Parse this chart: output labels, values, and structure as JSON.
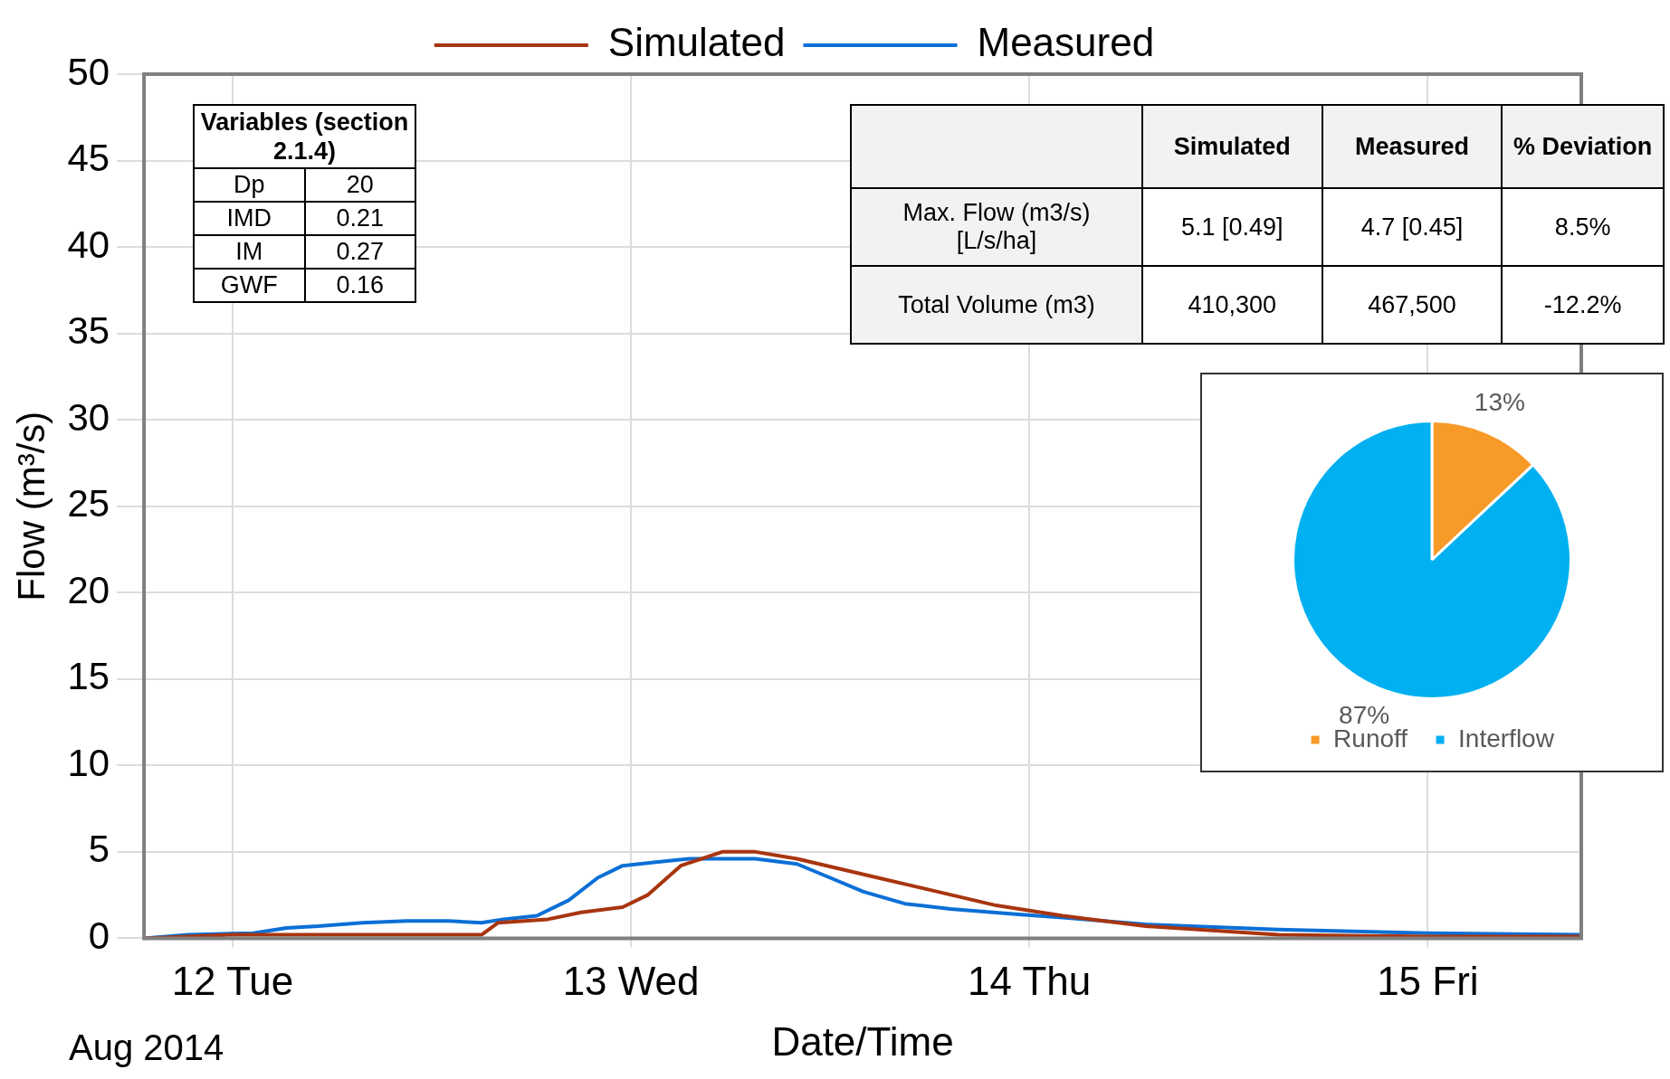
{
  "chart_data": [
    {
      "type": "line",
      "xlabel": "Date/Time",
      "ylabel": "Flow (m³/s)",
      "annotations": [
        "Aug 2014"
      ],
      "xlim": [
        "2014-08-11T18:40",
        "2014-08-15T09:15"
      ],
      "xticks": [
        {
          "value": "2014-08-12",
          "label": "12 Tue"
        },
        {
          "value": "2014-08-13",
          "label": "13 Wed"
        },
        {
          "value": "2014-08-14",
          "label": "14 Thu"
        },
        {
          "value": "2014-08-15",
          "label": "15 Fri"
        }
      ],
      "ylim": [
        0,
        50
      ],
      "yticks": [
        0,
        5,
        10,
        15,
        20,
        25,
        30,
        35,
        40,
        45,
        50
      ],
      "grid": true,
      "legend": "top",
      "marker": "none",
      "line_style": "solid",
      "series": [
        {
          "name": "Simulated",
          "color": "#a8350f",
          "x": [
            "2014-08-11T18:40",
            "2014-08-12T00:00",
            "2014-08-12T04:00",
            "2014-08-12T10:30",
            "2014-08-12T15:00",
            "2014-08-12T16:00",
            "2014-08-12T19:00",
            "2014-08-12T21:00",
            "2014-08-12T23:30",
            "2014-08-13T01:00",
            "2014-08-13T03:00",
            "2014-08-13T05:30",
            "2014-08-13T07:30",
            "2014-08-13T10:00",
            "2014-08-13T14:00",
            "2014-08-13T18:00",
            "2014-08-13T22:00",
            "2014-08-14T02:00",
            "2014-08-14T07:00",
            "2014-08-14T15:00",
            "2014-08-15T00:00",
            "2014-08-15T09:15"
          ],
          "values": [
            0,
            0.2,
            0.2,
            0.2,
            0.2,
            0.9,
            1.1,
            1.5,
            1.8,
            2.5,
            4.2,
            5.0,
            5.0,
            4.6,
            3.7,
            2.8,
            1.9,
            1.3,
            0.7,
            0.2,
            0.1,
            0.1
          ]
        },
        {
          "name": "Measured",
          "color": "#0b6fd6",
          "x": [
            "2014-08-11T18:40",
            "2014-08-11T21:20",
            "2014-08-12T01:15",
            "2014-08-12T03:15",
            "2014-08-12T05:10",
            "2014-08-12T07:50",
            "2014-08-12T10:30",
            "2014-08-12T13:00",
            "2014-08-12T15:00",
            "2014-08-12T16:20",
            "2014-08-12T18:20",
            "2014-08-12T20:15",
            "2014-08-12T22:00",
            "2014-08-12T23:30",
            "2014-08-13T01:30",
            "2014-08-13T03:30",
            "2014-08-13T07:30",
            "2014-08-13T10:00",
            "2014-08-13T12:00",
            "2014-08-13T14:00",
            "2014-08-13T16:30",
            "2014-08-13T19:15",
            "2014-08-13T23:10",
            "2014-08-14T02:00",
            "2014-08-14T07:00",
            "2014-08-14T15:00",
            "2014-08-15T00:00",
            "2014-08-15T09:15"
          ],
          "values": [
            0,
            0.2,
            0.3,
            0.6,
            0.7,
            0.9,
            1.0,
            1.0,
            0.9,
            1.1,
            1.3,
            2.2,
            3.5,
            4.2,
            4.4,
            4.6,
            4.6,
            4.3,
            3.5,
            2.7,
            2.0,
            1.7,
            1.4,
            1.2,
            0.8,
            0.5,
            0.3,
            0.2
          ]
        }
      ]
    },
    {
      "type": "pie",
      "categories": [
        "Runoff",
        "Interflow"
      ],
      "values": [
        13,
        87
      ],
      "colors": [
        "#f89a28",
        "#00b0f0"
      ],
      "value_labels": [
        "13%",
        "87%"
      ],
      "legend": "bottom"
    },
    {
      "type": "other",
      "title": "Variables (section 2.1.4)",
      "y_categories": [
        "Dp",
        "IMD",
        "IM",
        "GWF"
      ],
      "cell_labels": [
        [
          "20"
        ],
        [
          "0.21"
        ],
        [
          "0.27"
        ],
        [
          "0.16"
        ]
      ]
    },
    {
      "type": "other",
      "categories": [
        "Simulated",
        "Measured",
        "% Deviation"
      ],
      "y_categories": [
        "Max. Flow (m3/s) [L/s/ha]",
        "Total Volume (m3)"
      ],
      "cell_labels": [
        [
          "5.1 [0.49]",
          "4.7 [0.45]",
          "8.5%"
        ],
        [
          "410,300",
          "467,500",
          "-12.2%"
        ]
      ]
    }
  ]
}
